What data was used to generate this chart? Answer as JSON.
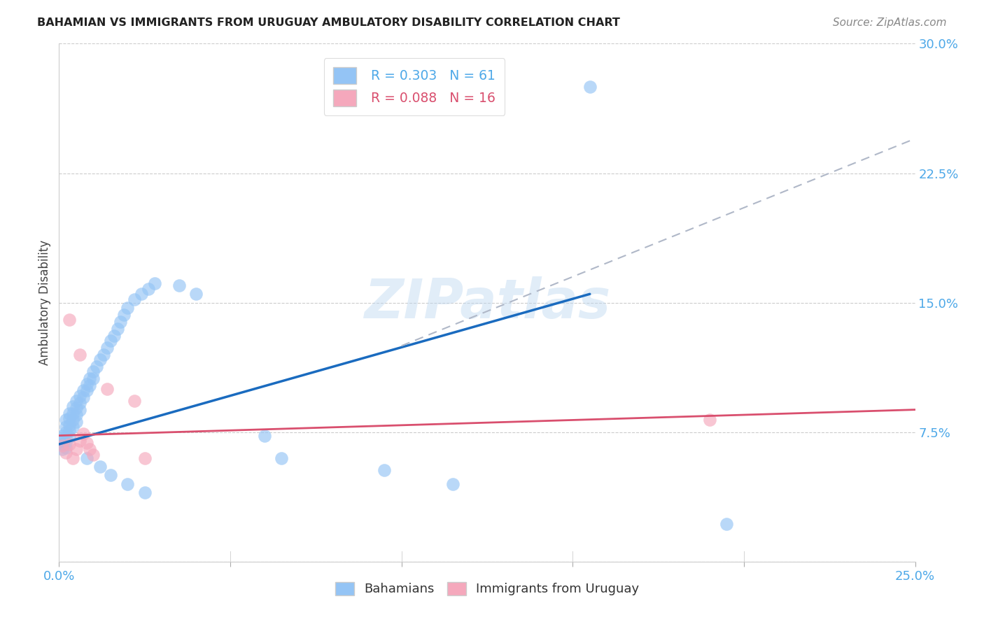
{
  "title": "BAHAMIAN VS IMMIGRANTS FROM URUGUAY AMBULATORY DISABILITY CORRELATION CHART",
  "source": "Source: ZipAtlas.com",
  "ylabel": "Ambulatory Disability",
  "xlim": [
    0.0,
    0.25
  ],
  "ylim": [
    0.0,
    0.3
  ],
  "xticks": [
    0.0,
    0.05,
    0.1,
    0.15,
    0.2,
    0.25
  ],
  "yticks": [
    0.0,
    0.075,
    0.15,
    0.225,
    0.3
  ],
  "ytick_labels": [
    "",
    "7.5%",
    "15.0%",
    "22.5%",
    "30.0%"
  ],
  "xtick_labels": [
    "0.0%",
    "",
    "",
    "",
    "",
    "25.0%"
  ],
  "legend_r1": "R = 0.303",
  "legend_n1": "N = 61",
  "legend_r2": "R = 0.088",
  "legend_n2": "N = 16",
  "bahamian_color": "#94c4f5",
  "uruguay_color": "#f5a8bc",
  "trend_blue": "#1a6bbf",
  "trend_pink": "#d94f6e",
  "trend_dashed_color": "#b0b8c8",
  "tick_label_color": "#4da8e8",
  "watermark": "ZIPatlas",
  "bahamian_x": [
    0.001,
    0.001,
    0.001,
    0.001,
    0.002,
    0.002,
    0.002,
    0.002,
    0.002,
    0.002,
    0.003,
    0.003,
    0.003,
    0.003,
    0.003,
    0.004,
    0.004,
    0.004,
    0.004,
    0.005,
    0.005,
    0.005,
    0.005,
    0.006,
    0.006,
    0.006,
    0.007,
    0.007,
    0.008,
    0.008,
    0.009,
    0.009,
    0.01,
    0.01,
    0.011,
    0.012,
    0.013,
    0.014,
    0.015,
    0.016,
    0.017,
    0.018,
    0.019,
    0.02,
    0.022,
    0.024,
    0.026,
    0.028,
    0.035,
    0.04,
    0.06,
    0.065,
    0.095,
    0.115,
    0.155,
    0.195,
    0.008,
    0.012,
    0.015,
    0.02,
    0.025
  ],
  "bahamian_y": [
    0.073,
    0.071,
    0.068,
    0.065,
    0.082,
    0.078,
    0.075,
    0.072,
    0.069,
    0.066,
    0.086,
    0.083,
    0.079,
    0.076,
    0.072,
    0.09,
    0.086,
    0.082,
    0.078,
    0.093,
    0.089,
    0.085,
    0.081,
    0.096,
    0.092,
    0.088,
    0.099,
    0.095,
    0.103,
    0.099,
    0.106,
    0.102,
    0.11,
    0.106,
    0.113,
    0.117,
    0.12,
    0.124,
    0.128,
    0.131,
    0.135,
    0.139,
    0.143,
    0.147,
    0.152,
    0.155,
    0.158,
    0.161,
    0.16,
    0.155,
    0.073,
    0.06,
    0.053,
    0.045,
    0.275,
    0.022,
    0.06,
    0.055,
    0.05,
    0.045,
    0.04
  ],
  "uruguay_x": [
    0.001,
    0.002,
    0.003,
    0.003,
    0.004,
    0.005,
    0.006,
    0.006,
    0.007,
    0.008,
    0.009,
    0.01,
    0.014,
    0.022,
    0.025,
    0.19
  ],
  "uruguay_y": [
    0.067,
    0.063,
    0.14,
    0.068,
    0.06,
    0.065,
    0.12,
    0.07,
    0.074,
    0.069,
    0.065,
    0.062,
    0.1,
    0.093,
    0.06,
    0.082
  ],
  "blue_trend_x": [
    0.0,
    0.155
  ],
  "blue_trend_y_start": 0.068,
  "blue_trend_y_end": 0.155,
  "dashed_trend_x": [
    0.1,
    0.25
  ],
  "dashed_trend_y_start": 0.125,
  "dashed_trend_y_end": 0.245,
  "pink_trend_x": [
    0.0,
    0.25
  ],
  "pink_trend_y_start": 0.073,
  "pink_trend_y_end": 0.088
}
